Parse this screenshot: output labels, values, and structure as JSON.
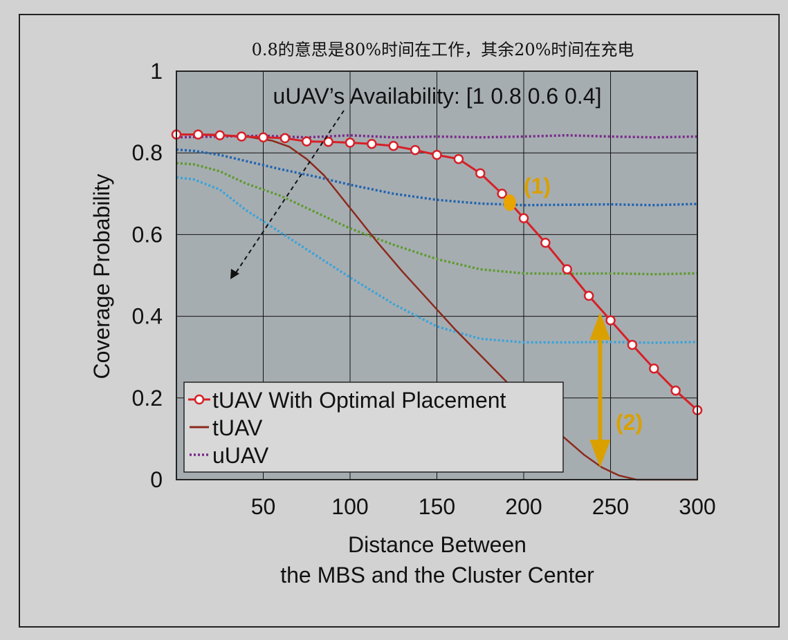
{
  "chart_data": {
    "type": "line",
    "title": "",
    "note": "0.8的意思是80%时间在工作，其余20%时间在充电",
    "xlabel_line1": "Distance Between",
    "xlabel_line2": "the MBS and the Cluster Center",
    "ylabel": "Coverage Probability",
    "xlim": [
      0,
      300
    ],
    "ylim": [
      0,
      1
    ],
    "xticks": [
      50,
      100,
      150,
      200,
      250,
      300
    ],
    "yticks": [
      0,
      0.2,
      0.4,
      0.6,
      0.8,
      1
    ],
    "ytick_labels": [
      "0",
      "0.2",
      "0.4",
      "0.6",
      "0.8",
      "1"
    ],
    "xtick_labels": [
      "50",
      "100",
      "150",
      "200",
      "250",
      "300"
    ],
    "grid": true,
    "legend_position": "bottom-left",
    "availability_annotation": "uUAV’s Availability: [1 0.8 0.6 0.4]",
    "annotation_1": "(1)",
    "annotation_2": "(2)",
    "colors": {
      "plot_bg": "#a6adb1",
      "optimal": "#d62027",
      "tuav": "#8b2a1c",
      "uuav_1": "#7a2a8a",
      "uuav_08": "#1f64b0",
      "uuav_06": "#5e9a2e",
      "uuav_04": "#3aa3d8",
      "annotation": "#d9a000"
    },
    "series": [
      {
        "name": "tUAV With Optimal Placement",
        "style": "line-circle",
        "x": [
          0,
          12.5,
          25,
          37.5,
          50,
          62.5,
          75,
          87.5,
          100,
          112.5,
          125,
          137.5,
          150,
          162.5,
          175,
          187.5,
          200,
          212.5,
          225,
          237.5,
          250,
          262.5,
          275,
          287.5,
          300
        ],
        "y": [
          0.845,
          0.845,
          0.843,
          0.84,
          0.838,
          0.836,
          0.828,
          0.827,
          0.825,
          0.822,
          0.817,
          0.807,
          0.795,
          0.785,
          0.75,
          0.7,
          0.64,
          0.58,
          0.515,
          0.45,
          0.39,
          0.33,
          0.272,
          0.218,
          0.17
        ]
      },
      {
        "name": "tUAV",
        "style": "solid",
        "x": [
          0,
          20,
          40,
          55,
          65,
          75,
          85,
          100,
          115,
          130,
          145,
          160,
          175,
          190,
          205,
          220,
          235,
          245,
          255,
          265,
          275,
          300
        ],
        "y": [
          0.845,
          0.845,
          0.84,
          0.83,
          0.815,
          0.785,
          0.745,
          0.665,
          0.585,
          0.51,
          0.44,
          0.37,
          0.305,
          0.24,
          0.175,
          0.115,
          0.06,
          0.03,
          0.01,
          0,
          0,
          0
        ]
      },
      {
        "name": "uUAV",
        "style": "dotted",
        "availability": 1,
        "x": [
          0,
          25,
          50,
          75,
          100,
          125,
          150,
          175,
          200,
          225,
          250,
          275,
          300
        ],
        "y": [
          0.838,
          0.84,
          0.842,
          0.838,
          0.843,
          0.838,
          0.84,
          0.838,
          0.84,
          0.843,
          0.84,
          0.838,
          0.84
        ]
      },
      {
        "name": "",
        "style": "dotted",
        "availability": 0.8,
        "x": [
          0,
          10,
          25,
          40,
          60,
          80,
          100,
          125,
          150,
          175,
          200,
          225,
          250,
          275,
          300
        ],
        "y": [
          0.808,
          0.805,
          0.795,
          0.78,
          0.76,
          0.742,
          0.722,
          0.7,
          0.685,
          0.676,
          0.672,
          0.673,
          0.674,
          0.672,
          0.675
        ]
      },
      {
        "name": "",
        "style": "dotted",
        "availability": 0.6,
        "x": [
          0,
          10,
          25,
          40,
          60,
          80,
          100,
          125,
          150,
          175,
          200,
          225,
          250,
          275,
          300
        ],
        "y": [
          0.775,
          0.772,
          0.755,
          0.725,
          0.695,
          0.655,
          0.615,
          0.575,
          0.54,
          0.515,
          0.505,
          0.504,
          0.505,
          0.503,
          0.505
        ]
      },
      {
        "name": "",
        "style": "dotted",
        "availability": 0.4,
        "x": [
          0,
          10,
          25,
          40,
          60,
          80,
          100,
          125,
          150,
          175,
          200,
          225,
          250,
          275,
          300
        ],
        "y": [
          0.74,
          0.735,
          0.71,
          0.66,
          0.605,
          0.55,
          0.495,
          0.43,
          0.375,
          0.345,
          0.336,
          0.336,
          0.337,
          0.335,
          0.337
        ]
      }
    ],
    "highlight_point": {
      "x": 192,
      "y": 0.678
    },
    "gap_arrow": {
      "x": 244,
      "y_top": 0.41,
      "y_bottom": 0.03
    }
  }
}
